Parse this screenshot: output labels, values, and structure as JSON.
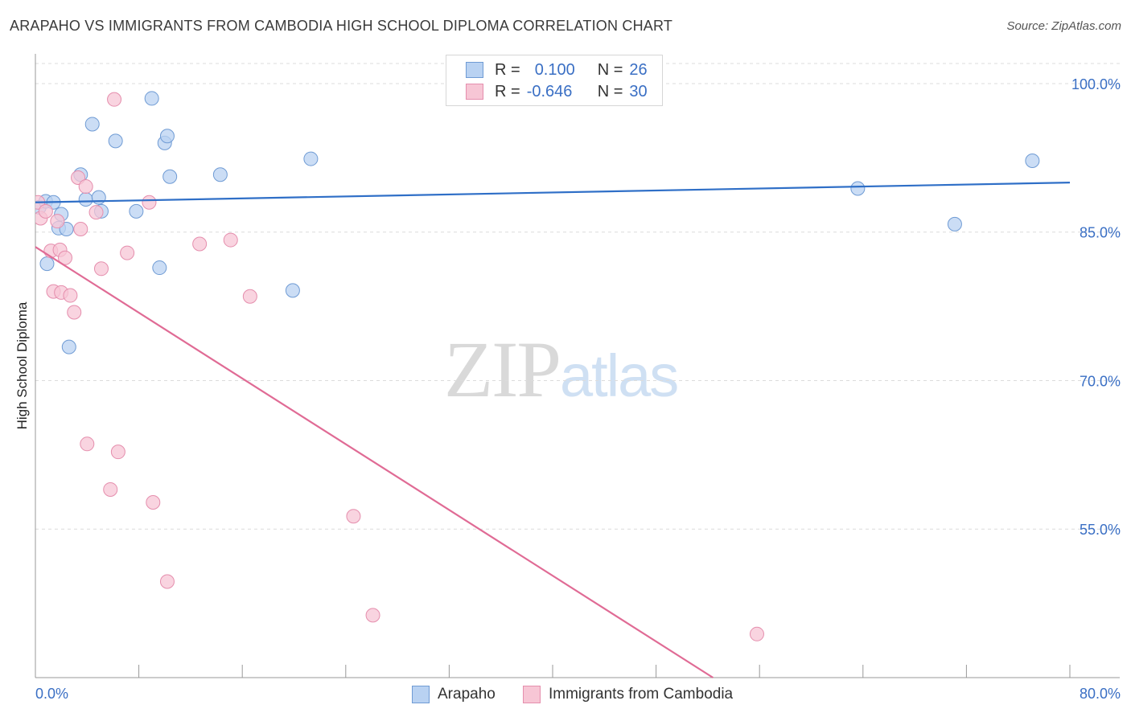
{
  "header": {
    "title": "ARAPAHO VS IMMIGRANTS FROM CAMBODIA HIGH SCHOOL DIPLOMA CORRELATION CHART",
    "source": "Source: ZipAtlas.com"
  },
  "watermark": {
    "zip": "ZIP",
    "atlas": "atlas"
  },
  "legend": {
    "r_label": "R =",
    "n_label": "N =",
    "rows": [
      {
        "r": "0.100",
        "n": "26"
      },
      {
        "r": "-0.646",
        "n": "30"
      }
    ]
  },
  "colors": {
    "arapaho_fill": "#b9d2f2",
    "arapaho_stroke": "#6f9bd4",
    "arapaho_line": "#2f6fc7",
    "cambodia_fill": "#f7c6d5",
    "cambodia_stroke": "#e58ead",
    "cambodia_line": "#e06b95",
    "tick_label": "#3a6fc4",
    "grid": "#dcdcdc"
  },
  "chart_data": {
    "type": "scatter",
    "title": "ARAPAHO VS IMMIGRANTS FROM CAMBODIA HIGH SCHOOL DIPLOMA CORRELATION CHART",
    "xlabel": "",
    "ylabel": "High School Diploma",
    "xlim": [
      0,
      80
    ],
    "ylim": [
      40,
      103
    ],
    "x_tick_labels": [
      "0.0%",
      "80.0%"
    ],
    "y_ticks": [
      55,
      70,
      85,
      100
    ],
    "y_tick_labels": [
      "55.0%",
      "70.0%",
      "85.0%",
      "100.0%"
    ],
    "grid": true,
    "legend_placement": "top-center",
    "series": [
      {
        "name": "Arapaho",
        "r": 0.1,
        "n": 26,
        "trend": {
          "x": [
            0,
            80
          ],
          "y": [
            88.0,
            90.0
          ]
        },
        "points": [
          [
            0.3,
            87.5
          ],
          [
            0.8,
            88.1
          ],
          [
            1.4,
            88.0
          ],
          [
            1.8,
            85.4
          ],
          [
            2.4,
            85.3
          ],
          [
            2.0,
            86.8
          ],
          [
            0.9,
            81.8
          ],
          [
            2.6,
            73.4
          ],
          [
            3.5,
            90.8
          ],
          [
            3.9,
            88.3
          ],
          [
            4.4,
            95.9
          ],
          [
            4.9,
            88.5
          ],
          [
            5.1,
            87.1
          ],
          [
            6.2,
            94.2
          ],
          [
            7.8,
            87.1
          ],
          [
            9.0,
            98.5
          ],
          [
            10.0,
            94.0
          ],
          [
            10.2,
            94.7
          ],
          [
            10.4,
            90.6
          ],
          [
            9.6,
            81.4
          ],
          [
            14.3,
            90.8
          ],
          [
            19.9,
            79.1
          ],
          [
            21.3,
            92.4
          ],
          [
            63.6,
            89.4
          ],
          [
            71.1,
            85.8
          ],
          [
            77.1,
            92.2
          ]
        ]
      },
      {
        "name": "Immigrants from Cambodia",
        "r": -0.646,
        "n": 30,
        "trend": {
          "x": [
            0,
            52.4
          ],
          "y": [
            83.5,
            40.0
          ]
        },
        "points": [
          [
            0.2,
            88.0
          ],
          [
            0.4,
            86.4
          ],
          [
            0.8,
            87.1
          ],
          [
            1.2,
            83.1
          ],
          [
            1.4,
            79.0
          ],
          [
            1.7,
            86.1
          ],
          [
            1.9,
            83.2
          ],
          [
            2.0,
            78.9
          ],
          [
            2.3,
            82.4
          ],
          [
            2.7,
            78.6
          ],
          [
            3.0,
            76.9
          ],
          [
            3.3,
            90.5
          ],
          [
            3.5,
            85.3
          ],
          [
            3.9,
            89.6
          ],
          [
            4.7,
            87.0
          ],
          [
            5.1,
            81.3
          ],
          [
            4.0,
            63.6
          ],
          [
            5.8,
            59.0
          ],
          [
            6.1,
            98.4
          ],
          [
            6.4,
            62.8
          ],
          [
            7.1,
            82.9
          ],
          [
            8.8,
            88.0
          ],
          [
            9.1,
            57.7
          ],
          [
            10.2,
            49.7
          ],
          [
            12.7,
            83.8
          ],
          [
            15.1,
            84.2
          ],
          [
            16.6,
            78.5
          ],
          [
            24.6,
            56.3
          ],
          [
            26.1,
            46.3
          ],
          [
            55.8,
            44.4
          ]
        ]
      }
    ]
  }
}
